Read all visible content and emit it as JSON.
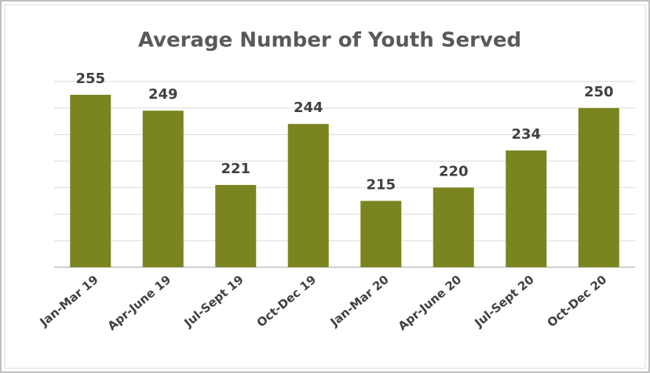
{
  "chart_data": {
    "type": "bar",
    "title": "Average Number of Youth Served",
    "categories": [
      "Jan-Mar 19",
      "Apr-June 19",
      "Jul-Sept 19",
      "Oct-Dec 19",
      "Jan-Mar 20",
      "Apr-June 20",
      "Jul-Sept 20",
      "Oct-Dec 20"
    ],
    "values": [
      255,
      249,
      221,
      244,
      215,
      220,
      234,
      250
    ],
    "color": "#7a8520",
    "ylim": [
      190,
      260
    ],
    "yticks": [
      190,
      200,
      210,
      220,
      230,
      240,
      250,
      260
    ],
    "grid": true
  }
}
